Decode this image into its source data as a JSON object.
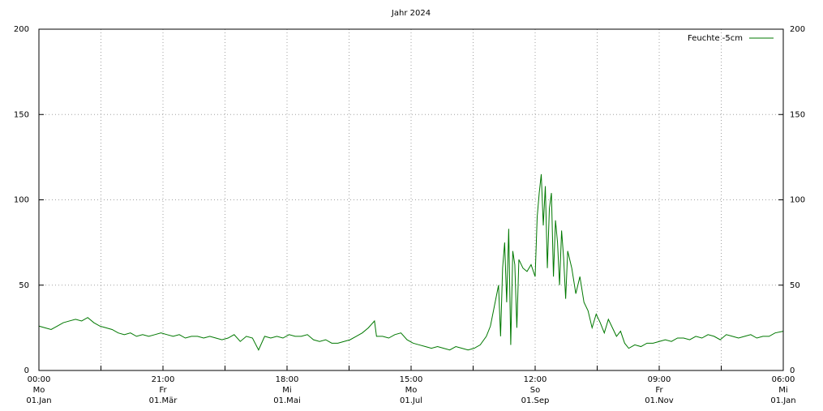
{
  "chart_data": {
    "type": "line",
    "title": "Jahr 2024",
    "x": [
      0,
      3,
      6,
      9,
      12,
      15,
      18,
      21,
      24,
      27,
      30,
      33,
      36,
      39,
      42,
      45,
      48,
      51,
      54,
      57,
      60,
      63,
      66,
      69,
      72,
      75,
      78,
      81,
      84,
      87,
      90,
      93,
      96,
      99,
      102,
      105,
      108,
      111,
      114,
      117,
      120,
      123,
      126,
      129,
      132,
      135,
      138,
      141,
      144,
      147,
      150,
      153,
      156,
      159,
      162,
      165,
      166,
      169,
      172,
      175,
      178,
      181,
      184,
      187,
      190,
      193,
      196,
      199,
      202,
      205,
      208,
      211,
      214,
      217,
      220,
      222,
      224,
      226,
      227,
      228,
      229,
      230,
      231,
      232,
      233,
      234,
      235,
      236,
      238,
      240,
      242,
      244,
      245,
      246,
      247,
      248,
      249,
      250,
      251,
      252,
      253,
      254,
      255,
      256,
      257,
      258,
      259,
      260,
      262,
      264,
      266,
      268,
      270,
      272,
      274,
      276,
      278,
      280,
      282,
      284,
      286,
      288,
      290,
      293,
      296,
      299,
      302,
      305,
      308,
      311,
      314,
      317,
      320,
      323,
      326,
      329,
      332,
      335,
      338,
      341,
      344,
      347,
      350,
      353,
      356,
      359,
      362,
      366
    ],
    "series": [
      {
        "name": "Feuchte -5cm",
        "color": "#007800",
        "values": [
          26,
          25,
          24,
          26,
          28,
          29,
          30,
          29,
          31,
          28,
          26,
          25,
          24,
          22,
          21,
          22,
          20,
          21,
          20,
          21,
          22,
          21,
          20,
          21,
          19,
          20,
          20,
          19,
          20,
          19,
          18,
          19,
          21,
          17,
          20,
          19,
          12,
          20,
          19,
          20,
          19,
          21,
          20,
          20,
          21,
          18,
          17,
          18,
          16,
          16,
          17,
          18,
          20,
          22,
          25,
          29,
          20,
          20,
          19,
          21,
          22,
          18,
          16,
          15,
          14,
          13,
          14,
          13,
          12,
          14,
          13,
          12,
          13,
          15,
          20,
          26,
          38,
          50,
          20,
          60,
          75,
          40,
          83,
          15,
          70,
          62,
          25,
          65,
          60,
          58,
          62,
          55,
          90,
          104,
          115,
          85,
          108,
          60,
          95,
          104,
          55,
          88,
          75,
          50,
          82,
          66,
          42,
          70,
          60,
          45,
          55,
          40,
          35,
          25,
          33,
          28,
          22,
          30,
          25,
          20,
          23,
          16,
          13,
          15,
          14,
          16,
          16,
          17,
          18,
          17,
          19,
          19,
          18,
          20,
          19,
          21,
          20,
          18,
          21,
          20,
          19,
          20,
          21,
          19,
          20,
          20,
          22,
          23
        ]
      }
    ],
    "xlim": [
      0,
      366
    ],
    "xticks": [
      {
        "value": 0,
        "label": [
          "00:00",
          "Mo",
          "01.Jan"
        ]
      },
      {
        "value": 61,
        "label": [
          "21:00",
          "Fr",
          "01.Mär"
        ]
      },
      {
        "value": 122,
        "label": [
          "18:00",
          "Mi",
          "01.Mai"
        ]
      },
      {
        "value": 183,
        "label": [
          "15:00",
          "Mo",
          "01.Jul"
        ]
      },
      {
        "value": 244,
        "label": [
          "12:00",
          "So",
          "01.Sep"
        ]
      },
      {
        "value": 305,
        "label": [
          "09:00",
          "Fr",
          "01.Nov"
        ]
      },
      {
        "value": 366,
        "label": [
          "06:00",
          "Mi",
          "01.Jan"
        ]
      }
    ],
    "xminorticks": [
      30.5,
      91.5,
      152.5,
      213.5,
      274.5,
      335.5
    ],
    "ylim": [
      0,
      200
    ],
    "yticks": [
      0,
      50,
      100,
      150,
      200
    ],
    "y2lim": [
      0,
      200
    ],
    "y2ticks": [
      0,
      50,
      100,
      150,
      200
    ],
    "grid": true,
    "legend": "upper right"
  }
}
